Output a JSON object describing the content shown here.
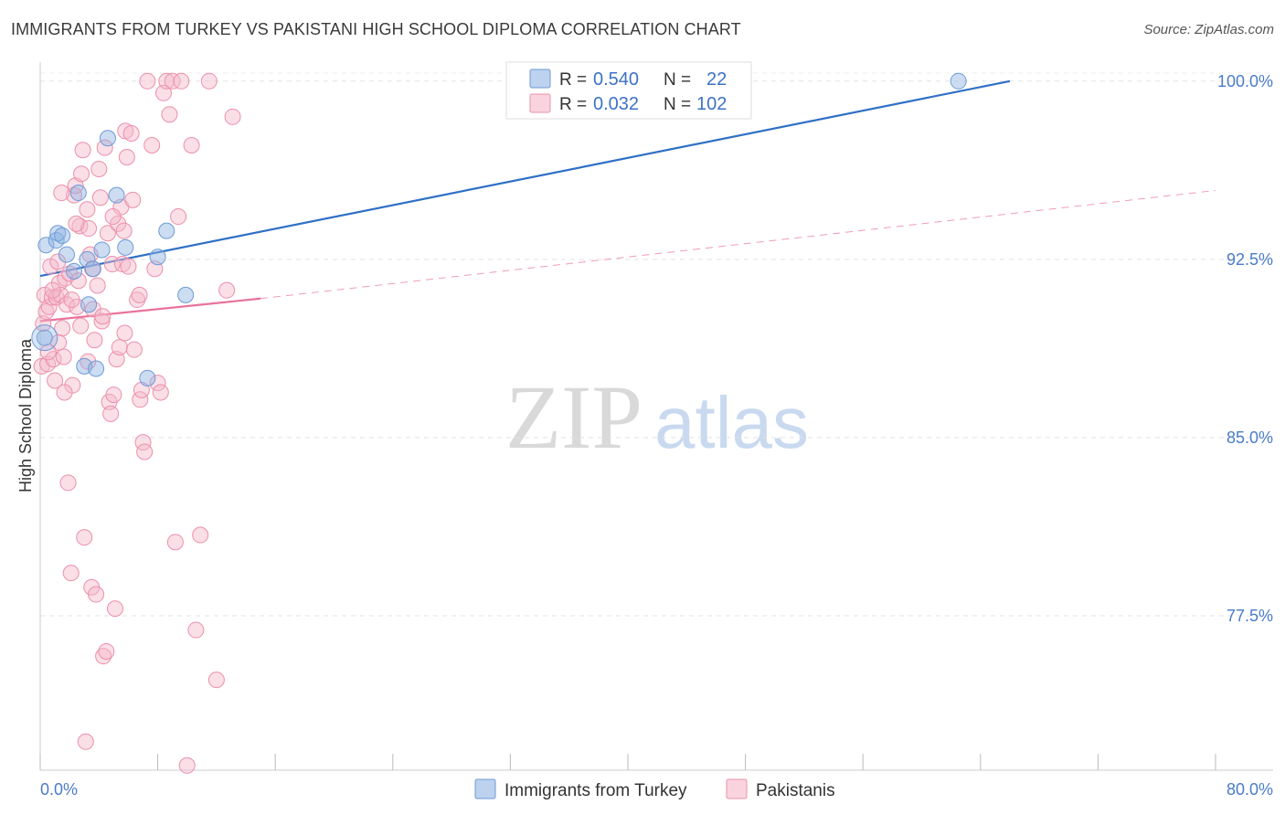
{
  "title": "IMMIGRANTS FROM TURKEY VS PAKISTANI HIGH SCHOOL DIPLOMA CORRELATION CHART",
  "source": "Source: ZipAtlas.com",
  "watermark": {
    "zip": "ZIP",
    "atlas": "atlas"
  },
  "chart_data": {
    "type": "scatter",
    "xlabel": "",
    "ylabel": "High School Diploma",
    "xlim": [
      0,
      80
    ],
    "ylim": [
      71.0,
      100.8
    ],
    "x_tick_labels": [
      {
        "value": 0,
        "label": "0.0%"
      },
      {
        "value": 80,
        "label": "80.0%"
      }
    ],
    "x_minor_ticks": [
      0,
      8,
      16,
      24,
      32,
      40,
      48,
      56,
      64,
      72,
      80
    ],
    "y_ticks": [
      {
        "value": 100.0,
        "label": "100.0%"
      },
      {
        "value": 92.5,
        "label": "92.5%"
      },
      {
        "value": 85.0,
        "label": "85.0%"
      },
      {
        "value": 77.5,
        "label": "77.5%"
      }
    ],
    "legend": {
      "rows": [
        {
          "r_label": "R = ",
          "r_value": "0.540",
          "n_label": "N = ",
          "n_value": "22"
        },
        {
          "r_label": "R = ",
          "r_value": "0.032",
          "n_label": "N = ",
          "n_value": "102"
        }
      ]
    },
    "series": [
      {
        "name": "Immigrants from Turkey",
        "color": "#8fb4e3",
        "stroke": "#6e9bd6",
        "trend_color": "#2f6fc6",
        "trend": {
          "x0": 0,
          "y0": 91.8,
          "x1": 66,
          "y1": 100.0,
          "dashed_to": null
        },
        "points": [
          [
            0.3,
            89.2
          ],
          [
            0.4,
            93.1
          ],
          [
            1.1,
            93.3
          ],
          [
            1.2,
            93.6
          ],
          [
            1.5,
            93.5
          ],
          [
            1.8,
            92.7
          ],
          [
            2.3,
            92.0
          ],
          [
            2.6,
            95.3
          ],
          [
            3.0,
            88.0
          ],
          [
            3.2,
            92.5
          ],
          [
            3.3,
            90.6
          ],
          [
            3.6,
            92.1
          ],
          [
            3.8,
            87.9
          ],
          [
            4.2,
            92.9
          ],
          [
            4.6,
            97.6
          ],
          [
            5.2,
            95.2
          ],
          [
            5.8,
            93.0
          ],
          [
            7.3,
            87.5
          ],
          [
            8.0,
            92.6
          ],
          [
            8.6,
            93.7
          ],
          [
            9.9,
            91.0
          ],
          [
            62.5,
            100.0
          ]
        ]
      },
      {
        "name": "Pakistanis",
        "color": "#f5b8ca",
        "stroke": "#ec8fab",
        "trend_color": "#e8739b",
        "trend": {
          "x0": 0,
          "y0": 89.9,
          "x1": 15,
          "y1": 90.85,
          "dashed_to": {
            "x": 80,
            "y": 95.4
          }
        },
        "points": [
          [
            0.1,
            88.0
          ],
          [
            0.2,
            89.8
          ],
          [
            0.3,
            91.0
          ],
          [
            0.4,
            90.3
          ],
          [
            0.5,
            88.1
          ],
          [
            0.6,
            90.5
          ],
          [
            0.7,
            92.2
          ],
          [
            0.8,
            90.9
          ],
          [
            0.9,
            88.3
          ],
          [
            1.0,
            87.4
          ],
          [
            1.1,
            90.9
          ],
          [
            1.2,
            92.4
          ],
          [
            1.3,
            91.5
          ],
          [
            1.4,
            91.0
          ],
          [
            1.5,
            89.6
          ],
          [
            1.6,
            88.4
          ],
          [
            1.7,
            91.7
          ],
          [
            1.8,
            90.6
          ],
          [
            1.9,
            83.1
          ],
          [
            2.0,
            91.9
          ],
          [
            2.1,
            79.3
          ],
          [
            2.2,
            87.2
          ],
          [
            2.3,
            95.2
          ],
          [
            2.4,
            95.6
          ],
          [
            2.5,
            90.5
          ],
          [
            2.6,
            91.6
          ],
          [
            2.7,
            93.9
          ],
          [
            2.8,
            96.1
          ],
          [
            2.9,
            97.1
          ],
          [
            3.0,
            80.8
          ],
          [
            3.1,
            72.2
          ],
          [
            3.2,
            94.6
          ],
          [
            3.3,
            93.8
          ],
          [
            3.4,
            92.7
          ],
          [
            3.5,
            78.7
          ],
          [
            3.6,
            90.4
          ],
          [
            3.7,
            89.1
          ],
          [
            3.8,
            78.4
          ],
          [
            3.9,
            91.4
          ],
          [
            4.0,
            96.3
          ],
          [
            4.1,
            95.1
          ],
          [
            4.2,
            89.9
          ],
          [
            4.3,
            75.8
          ],
          [
            4.4,
            97.2
          ],
          [
            4.5,
            76.0
          ],
          [
            4.6,
            93.6
          ],
          [
            4.7,
            86.5
          ],
          [
            4.8,
            86.0
          ],
          [
            4.9,
            92.3
          ],
          [
            5.0,
            86.8
          ],
          [
            5.1,
            77.8
          ],
          [
            5.2,
            88.3
          ],
          [
            5.3,
            94.0
          ],
          [
            5.4,
            88.8
          ],
          [
            5.5,
            94.7
          ],
          [
            5.6,
            92.3
          ],
          [
            5.7,
            93.7
          ],
          [
            5.8,
            97.9
          ],
          [
            5.9,
            96.8
          ],
          [
            6.0,
            92.2
          ],
          [
            6.2,
            97.8
          ],
          [
            6.4,
            88.7
          ],
          [
            6.6,
            90.8
          ],
          [
            6.8,
            86.6
          ],
          [
            6.9,
            87.0
          ],
          [
            7.0,
            84.8
          ],
          [
            7.1,
            84.4
          ],
          [
            7.3,
            100.0
          ],
          [
            7.6,
            97.3
          ],
          [
            7.8,
            92.1
          ],
          [
            8.0,
            87.3
          ],
          [
            8.2,
            86.9
          ],
          [
            8.4,
            99.5
          ],
          [
            8.6,
            100.0
          ],
          [
            8.8,
            98.6
          ],
          [
            9.0,
            100.0
          ],
          [
            9.2,
            80.6
          ],
          [
            9.4,
            94.3
          ],
          [
            9.6,
            100.0
          ],
          [
            10.0,
            71.2
          ],
          [
            10.3,
            97.3
          ],
          [
            10.6,
            76.9
          ],
          [
            10.9,
            80.9
          ],
          [
            11.5,
            100.0
          ],
          [
            12.0,
            74.8
          ],
          [
            12.7,
            91.2
          ],
          [
            13.1,
            98.5
          ],
          [
            1.25,
            89.0
          ],
          [
            0.85,
            91.2
          ],
          [
            2.15,
            90.8
          ],
          [
            3.55,
            92.1
          ],
          [
            4.95,
            94.3
          ],
          [
            6.3,
            95.0
          ],
          [
            1.45,
            95.3
          ],
          [
            2.45,
            94.0
          ],
          [
            0.55,
            88.6
          ],
          [
            1.65,
            86.9
          ],
          [
            2.75,
            89.7
          ],
          [
            3.25,
            88.2
          ],
          [
            4.25,
            90.1
          ],
          [
            5.75,
            89.4
          ],
          [
            6.75,
            91.0
          ]
        ]
      }
    ]
  }
}
